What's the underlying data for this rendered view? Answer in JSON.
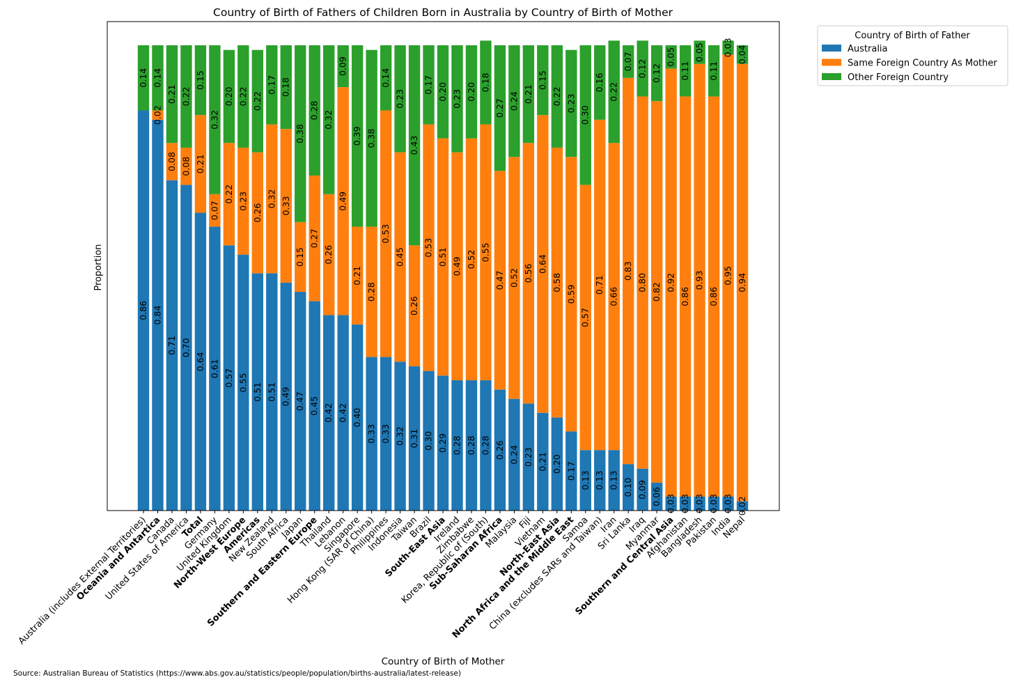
{
  "chart_data": {
    "type": "bar",
    "stacked": true,
    "title": "Country of Birth of Fathers of Children Born in Australia by Country of Birth of Mother",
    "xlabel": "Country of Birth of Mother",
    "ylabel": "Proportion",
    "ylim": [
      0,
      1
    ],
    "grid": false,
    "legend_title": "Country of Birth of Father",
    "legend_position": "outside top-right",
    "source": "Source: Australian Bureau of Statistics (https://www.abs.gov.au/statistics/people/population/births-australia/latest-release)",
    "categories": [
      "Australia (includes External Territories)",
      "Oceania and Antartica",
      "Canada",
      "United States of America",
      "Total",
      "Germany",
      "United Kingdom",
      "North-West Europe",
      "Americas",
      "New Zealand",
      "South Africa",
      "Japan",
      "Southern and Eastern Europe",
      "Thailand",
      "Lebanon",
      "Singapore",
      "Hong Kong (SAR of China)",
      "Philippines",
      "Indonesia",
      "Taiwan",
      "Brazil",
      "South-East Asia",
      "Ireland",
      "Zimbabwe",
      "Korea, Republic of (South)",
      "Sub-Saharan Africa",
      "Malaysia",
      "Fiji",
      "Vietnam",
      "North-East Asia",
      "North Africa and the Middle East",
      "Samoa",
      "China (excludes SARs and Taiwan)",
      "Iran",
      "Sri Lanka",
      "Iraq",
      "Myanmar",
      "Southern and Central Asia",
      "Afghanistan",
      "Bangladesh",
      "Pakistan",
      "India",
      "Nepal"
    ],
    "bold_categories": [
      "Oceania and Antartica",
      "Total",
      "North-West Europe",
      "Americas",
      "Southern and Eastern Europe",
      "South-East Asia",
      "Sub-Saharan Africa",
      "North-East Asia",
      "North Africa and the Middle East",
      "Southern and Central Asia"
    ],
    "series": [
      {
        "name": "Australia",
        "color": "#1f77b4",
        "values": [
          0.86,
          0.84,
          0.71,
          0.7,
          0.64,
          0.61,
          0.57,
          0.55,
          0.51,
          0.51,
          0.49,
          0.47,
          0.45,
          0.42,
          0.42,
          0.4,
          0.33,
          0.33,
          0.32,
          0.31,
          0.3,
          0.29,
          0.28,
          0.28,
          0.28,
          0.26,
          0.24,
          0.23,
          0.21,
          0.2,
          0.17,
          0.13,
          0.13,
          0.13,
          0.1,
          0.09,
          0.06,
          0.03,
          0.03,
          0.03,
          0.03,
          0.03,
          0.02
        ]
      },
      {
        "name": "Same Foreign Country As Mother",
        "color": "#ff7f0e",
        "values": [
          0.0,
          0.02,
          0.08,
          0.08,
          0.21,
          0.07,
          0.22,
          0.23,
          0.26,
          0.32,
          0.33,
          0.15,
          0.27,
          0.26,
          0.49,
          0.21,
          0.28,
          0.53,
          0.45,
          0.26,
          0.53,
          0.51,
          0.49,
          0.52,
          0.55,
          0.47,
          0.52,
          0.56,
          0.64,
          0.58,
          0.59,
          0.57,
          0.71,
          0.66,
          0.83,
          0.8,
          0.82,
          0.92,
          0.86,
          0.93,
          0.86,
          0.95,
          0.94
        ]
      },
      {
        "name": "Other Foreign Country",
        "color": "#2ca02c",
        "values": [
          0.14,
          0.14,
          0.21,
          0.22,
          0.15,
          0.32,
          0.2,
          0.22,
          0.22,
          0.17,
          0.18,
          0.38,
          0.28,
          0.32,
          0.09,
          0.39,
          0.38,
          0.14,
          0.23,
          0.43,
          0.17,
          0.2,
          0.23,
          0.2,
          0.18,
          0.27,
          0.24,
          0.21,
          0.15,
          0.22,
          0.23,
          0.3,
          0.16,
          0.22,
          0.07,
          0.12,
          0.12,
          0.05,
          0.11,
          0.05,
          0.11,
          0.03,
          0.04
        ]
      }
    ]
  }
}
